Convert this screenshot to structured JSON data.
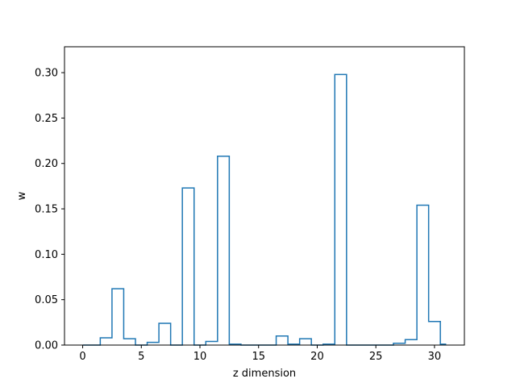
{
  "chart_data": {
    "type": "line",
    "drawstyle": "steps-mid",
    "xlabel": "z dimension",
    "ylabel": "w",
    "xlim": [
      -1.55,
      32.55
    ],
    "ylim": [
      0,
      0.3285
    ],
    "grid": false,
    "x_ticks": [
      0,
      5,
      10,
      15,
      20,
      25,
      30
    ],
    "x_tick_labels": [
      "0",
      "5",
      "10",
      "15",
      "20",
      "25",
      "30"
    ],
    "y_ticks": [
      0.0,
      0.05,
      0.1,
      0.15,
      0.2,
      0.25,
      0.3
    ],
    "y_tick_labels": [
      "0.00",
      "0.05",
      "0.10",
      "0.15",
      "0.20",
      "0.25",
      "0.30"
    ],
    "line_color": "#1f77b4",
    "series": [
      {
        "x": [
          0,
          1,
          2,
          3,
          4,
          5,
          6,
          7,
          8,
          9,
          10,
          11,
          12,
          13,
          14,
          15,
          16,
          17,
          18,
          19,
          20,
          21,
          22,
          23,
          24,
          25,
          26,
          27,
          28,
          29,
          30,
          31
        ],
        "values": [
          0.0,
          0.0,
          0.008,
          0.062,
          0.007,
          0.0,
          0.003,
          0.024,
          0.0,
          0.173,
          0.0,
          0.004,
          0.208,
          0.001,
          0.0,
          0.0,
          0.0,
          0.01,
          0.001,
          0.007,
          0.0,
          0.001,
          0.298,
          0.0,
          0.0,
          0.0,
          0.0,
          0.002,
          0.006,
          0.154,
          0.026,
          0.001
        ]
      }
    ]
  }
}
